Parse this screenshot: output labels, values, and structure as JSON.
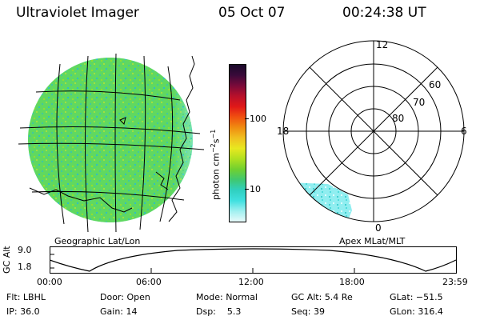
{
  "header": {
    "title": "Ultraviolet Imager",
    "date": "05 Oct 07",
    "time": "00:24:38 UT"
  },
  "left_panel": {
    "label": "Geographic Lat/Lon"
  },
  "right_panel": {
    "label": "Apex MLat/MLT",
    "mlt_labels": [
      "12",
      "18",
      "6",
      "0"
    ],
    "mlat_labels": [
      "60",
      "70",
      "80"
    ]
  },
  "colorbar": {
    "unit_label": "photon cm",
    "unit_sup1": "−2",
    "unit_mid": "s",
    "unit_sup2": "−1",
    "ticks": [
      "100",
      "10"
    ],
    "colors": [
      "#1a0a2a",
      "#3a0a3a",
      "#7a0a3a",
      "#b8102a",
      "#e01818",
      "#f05010",
      "#f08c10",
      "#f0c020",
      "#e8e820",
      "#b0e020",
      "#70d030",
      "#40c870",
      "#30d0c0",
      "#40e0e0",
      "#a0f0f0",
      "#e8fafa"
    ]
  },
  "altitude_plot": {
    "ylabel": "GC Alt",
    "yticks": [
      "9.0",
      "1.8"
    ],
    "xticks": [
      "00:00",
      "06:00",
      "12:00",
      "18:00",
      "23:59"
    ]
  },
  "info": {
    "row1": [
      {
        "key": "Flt:",
        "value": "LBHL"
      },
      {
        "key": "Door:",
        "value": "Open"
      },
      {
        "key": "Mode:",
        "value": "Normal"
      },
      {
        "key": "GC Alt:",
        "value": "5.4 Re"
      },
      {
        "key": "GLat:",
        "value": "−51.5"
      }
    ],
    "row2": [
      {
        "key": "IP:",
        "value": "36.0"
      },
      {
        "key": "Gain:",
        "value": "14"
      },
      {
        "key": "Dsp:",
        "value": "5.3"
      },
      {
        "key": "Seq:",
        "value": "39"
      },
      {
        "key": "GLon:",
        "value": "316.4"
      }
    ]
  }
}
